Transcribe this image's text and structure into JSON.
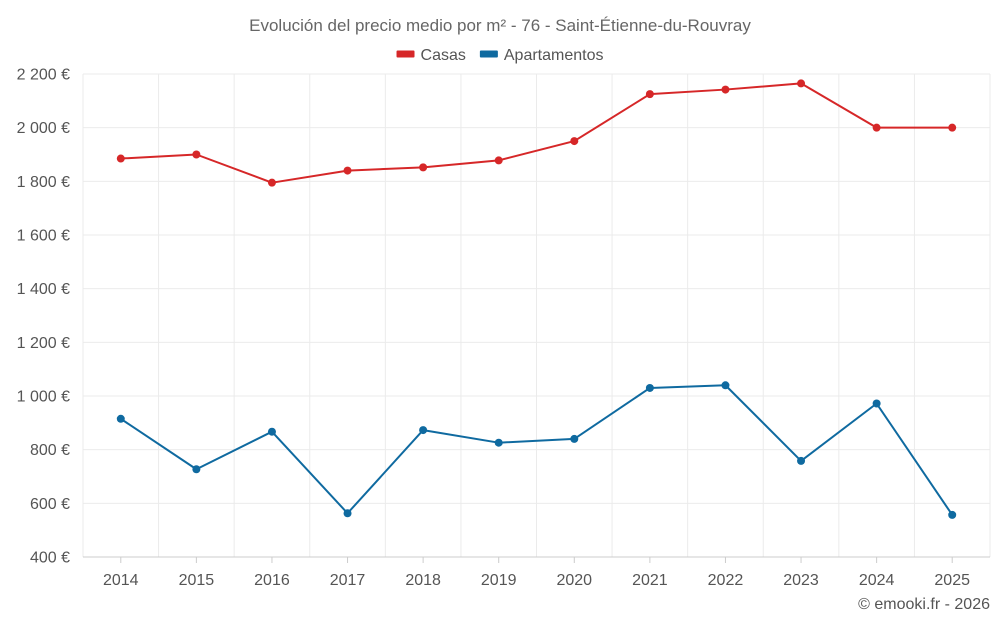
{
  "chart_data": {
    "type": "line",
    "title": "Evolución del precio medio por m² - 76 - Saint-Étienne-du-Rouvray",
    "categories": [
      "2014",
      "2015",
      "2016",
      "2017",
      "2018",
      "2019",
      "2020",
      "2021",
      "2022",
      "2023",
      "2024",
      "2025"
    ],
    "series": [
      {
        "name": "Casas",
        "color": "#d62728",
        "values": [
          1885,
          1900,
          1795,
          1840,
          1852,
          1878,
          1950,
          2125,
          2142,
          2165,
          2000,
          2000
        ]
      },
      {
        "name": "Apartamentos",
        "color": "#0f6aa0",
        "values": [
          915,
          727,
          867,
          563,
          873,
          826,
          840,
          1030,
          1040,
          758,
          972,
          557
        ]
      }
    ],
    "ylim": [
      400,
      2200
    ],
    "yticks": [
      400,
      600,
      800,
      1000,
      1200,
      1400,
      1600,
      1800,
      2000,
      2200
    ],
    "ytick_labels": [
      "400 €",
      "600 €",
      "800 €",
      "1 000 €",
      "1 200 €",
      "1 400 €",
      "1 600 €",
      "1 800 €",
      "2 000 €",
      "2 200 €"
    ],
    "xlabel": "",
    "ylabel": "",
    "grid": true,
    "legend": "top-center",
    "credit": "© emooki.fr - 2026"
  }
}
